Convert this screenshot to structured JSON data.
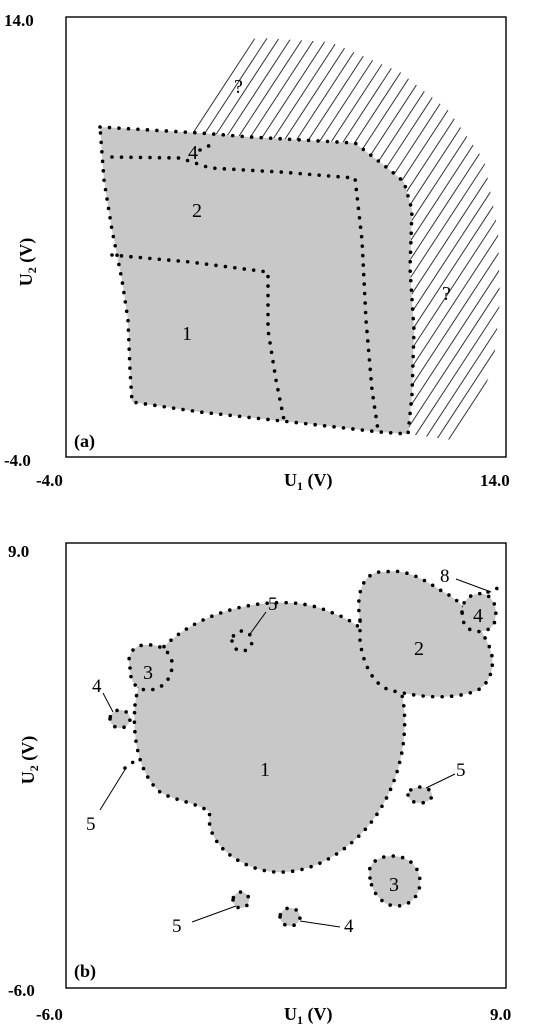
{
  "panel_a": {
    "panel_label": "(a)",
    "x_axis": {
      "label_main": "U",
      "label_sub": "1",
      "label_unit": " (V)",
      "min_label": "-4.0",
      "max_label": "14.0"
    },
    "y_axis": {
      "label_main": "U",
      "label_sub": "2",
      "label_unit": " (V)",
      "min_label": "-4.0",
      "max_label": "14.0"
    },
    "regions": [
      "1",
      "2",
      "4"
    ],
    "unknown_marks": [
      "?",
      "?"
    ]
  },
  "panel_b": {
    "panel_label": "(b)",
    "x_axis": {
      "label_main": "U",
      "label_sub": "1",
      "label_unit": " (V)",
      "min_label": "-6.0",
      "max_label": "9.0"
    },
    "y_axis": {
      "label_main": "U",
      "label_sub": "2",
      "label_unit": " (V)",
      "min_label": "-6.0",
      "max_label": "9.0"
    },
    "regions": [
      "1",
      "2",
      "3",
      "3",
      "4"
    ],
    "callouts": [
      "5",
      "4",
      "5",
      "5",
      "5",
      "4",
      "8"
    ]
  },
  "colors": {
    "fill": "#c8c8c8",
    "dots": "#000000",
    "frame": "#000000"
  }
}
